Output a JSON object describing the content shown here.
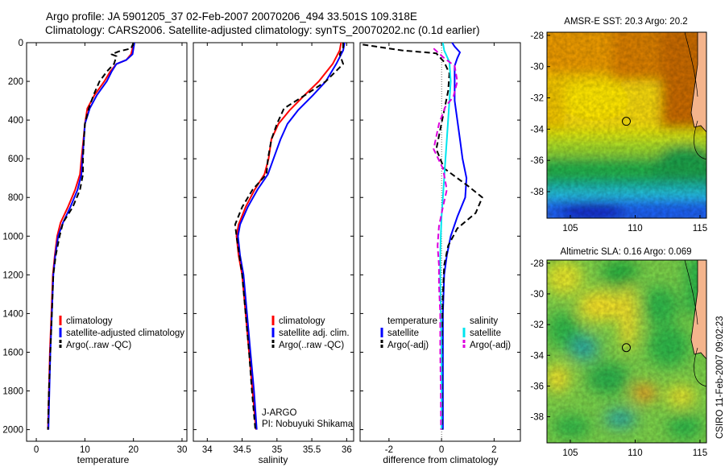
{
  "header": {
    "line1": "Argo profile: JA 5901205_37 02-Feb-2007 20070206_494 33.501S 109.318E",
    "line2": "Climatology: CARS2006. Satellite-adjusted climatology: synTS_20070202.nc (0.1d earlier)"
  },
  "side_credit": "CSIRO 11-Feb-2007 09:02:23",
  "chart_data": [
    {
      "id": "temperature",
      "type": "line",
      "xlabel": "temperature",
      "ylabel": "",
      "xlim": [
        -2,
        31
      ],
      "ylim": [
        2060,
        0
      ],
      "xticks": [
        "0",
        "10",
        "20",
        "30"
      ],
      "xtick_values": [
        0,
        10,
        20,
        30
      ],
      "yticks": [
        "0",
        "200",
        "400",
        "600",
        "800",
        "1000",
        "1200",
        "1400",
        "1600",
        "1800",
        "2000"
      ],
      "ytick_values": [
        0,
        200,
        400,
        600,
        800,
        1000,
        1200,
        1400,
        1600,
        1800,
        2000
      ],
      "legend": [
        "climatology",
        "satellite-adjusted climatology",
        "Argo(..raw -QC)"
      ],
      "series": [
        {
          "name": "climatology",
          "color": "#ff0000",
          "style": "solid",
          "points": [
            [
              20.1,
              0
            ],
            [
              19.8,
              30
            ],
            [
              19.5,
              60
            ],
            [
              18.5,
              90
            ],
            [
              16.5,
              110
            ],
            [
              15.2,
              150
            ],
            [
              14,
              200
            ],
            [
              12,
              270
            ],
            [
              10.5,
              340
            ],
            [
              10,
              420
            ],
            [
              9.7,
              500
            ],
            [
              9.3,
              600
            ],
            [
              9,
              680
            ],
            [
              8,
              760
            ],
            [
              6.5,
              850
            ],
            [
              5,
              930
            ],
            [
              4.3,
              1000
            ],
            [
              3.8,
              1100
            ],
            [
              3.4,
              1200
            ],
            [
              3.1,
              1400
            ],
            [
              2.8,
              1600
            ],
            [
              2.6,
              1800
            ],
            [
              2.4,
              2000
            ]
          ]
        },
        {
          "name": "satellite-adjusted climatology",
          "color": "#0000ff",
          "style": "solid",
          "points": [
            [
              20.2,
              0
            ],
            [
              20,
              30
            ],
            [
              19.8,
              60
            ],
            [
              18.5,
              90
            ],
            [
              16.5,
              110
            ],
            [
              15.5,
              150
            ],
            [
              14.5,
              200
            ],
            [
              12.5,
              270
            ],
            [
              11,
              340
            ],
            [
              10,
              420
            ],
            [
              9.8,
              500
            ],
            [
              9.5,
              600
            ],
            [
              9.3,
              680
            ],
            [
              8.5,
              760
            ],
            [
              7,
              850
            ],
            [
              5.5,
              930
            ],
            [
              4.5,
              1000
            ],
            [
              3.9,
              1100
            ],
            [
              3.5,
              1200
            ],
            [
              3.2,
              1400
            ],
            [
              2.9,
              1600
            ],
            [
              2.7,
              1800
            ],
            [
              2.5,
              2000
            ]
          ]
        },
        {
          "name": "Argo(..raw -QC)",
          "color": "#000000",
          "style": "dashed",
          "points": [
            [
              20,
              0
            ],
            [
              19.5,
              30
            ],
            [
              17,
              45
            ],
            [
              15.5,
              60
            ],
            [
              16.5,
              70
            ],
            [
              16,
              110
            ],
            [
              14.5,
              150
            ],
            [
              13,
              200
            ],
            [
              11.8,
              270
            ],
            [
              10.8,
              340
            ],
            [
              10,
              420
            ],
            [
              9.8,
              500
            ],
            [
              9.6,
              600
            ],
            [
              9.6,
              680
            ],
            [
              9,
              760
            ],
            [
              7.5,
              850
            ],
            [
              5.5,
              930
            ],
            [
              4.8,
              1000
            ],
            [
              4,
              1100
            ],
            [
              3.5,
              1200
            ],
            [
              3.2,
              1400
            ],
            [
              2.9,
              1600
            ],
            [
              2.6,
              1800
            ],
            [
              2.4,
              2000
            ]
          ]
        }
      ]
    },
    {
      "id": "salinity",
      "type": "line",
      "xlabel": "salinity",
      "ylabel": "",
      "xlim": [
        33.8,
        36.1
      ],
      "ylim": [
        2060,
        0
      ],
      "xticks": [
        "34",
        "34.5",
        "35",
        "35.5",
        "36"
      ],
      "xtick_values": [
        34,
        34.5,
        35,
        35.5,
        36
      ],
      "legend": [
        "climatology",
        "satellite adj. clim.",
        "Argo(..raw -QC)"
      ],
      "annotations": [
        "J-ARGO",
        "PI: Nobuyuki Shikama"
      ],
      "series": [
        {
          "name": "climatology",
          "color": "#ff0000",
          "style": "solid",
          "points": [
            [
              35.92,
              0
            ],
            [
              35.9,
              40
            ],
            [
              35.8,
              110
            ],
            [
              35.6,
              200
            ],
            [
              35.4,
              270
            ],
            [
              35.18,
              350
            ],
            [
              35.02,
              420
            ],
            [
              34.92,
              500
            ],
            [
              34.88,
              600
            ],
            [
              34.82,
              680
            ],
            [
              34.68,
              760
            ],
            [
              34.55,
              850
            ],
            [
              34.45,
              940
            ],
            [
              34.42,
              1000
            ],
            [
              34.45,
              1100
            ],
            [
              34.5,
              1200
            ],
            [
              34.55,
              1400
            ],
            [
              34.6,
              1600
            ],
            [
              34.65,
              1800
            ],
            [
              34.7,
              2000
            ]
          ]
        },
        {
          "name": "satellite adj. clim.",
          "color": "#0000ff",
          "style": "solid",
          "points": [
            [
              35.97,
              0
            ],
            [
              35.95,
              40
            ],
            [
              35.85,
              110
            ],
            [
              35.7,
              200
            ],
            [
              35.52,
              270
            ],
            [
              35.3,
              350
            ],
            [
              35.15,
              420
            ],
            [
              35.05,
              500
            ],
            [
              34.95,
              600
            ],
            [
              34.87,
              680
            ],
            [
              34.72,
              760
            ],
            [
              34.58,
              850
            ],
            [
              34.47,
              940
            ],
            [
              34.44,
              1000
            ],
            [
              34.47,
              1100
            ],
            [
              34.52,
              1200
            ],
            [
              34.57,
              1400
            ],
            [
              34.62,
              1600
            ],
            [
              34.67,
              1800
            ],
            [
              34.71,
              2000
            ]
          ]
        },
        {
          "name": "Argo(..raw -QC)",
          "color": "#000000",
          "style": "dashed",
          "points": [
            [
              35.95,
              0
            ],
            [
              35.95,
              25
            ],
            [
              35.9,
              60
            ],
            [
              35.95,
              110
            ],
            [
              35.7,
              200
            ],
            [
              35.45,
              260
            ],
            [
              35.1,
              340
            ],
            [
              35.0,
              420
            ],
            [
              34.92,
              500
            ],
            [
              34.87,
              600
            ],
            [
              34.85,
              680
            ],
            [
              34.65,
              760
            ],
            [
              34.5,
              850
            ],
            [
              34.4,
              940
            ],
            [
              34.42,
              1000
            ],
            [
              34.46,
              1100
            ],
            [
              34.5,
              1200
            ],
            [
              34.55,
              1400
            ],
            [
              34.6,
              1600
            ],
            [
              34.64,
              1800
            ],
            [
              34.69,
              2000
            ]
          ]
        }
      ]
    },
    {
      "id": "difference",
      "type": "line",
      "xlabel": "difference from climatology",
      "ylabel": "",
      "xlim": [
        -3.1,
        3
      ],
      "ylim": [
        2060,
        0
      ],
      "xticks": [
        "-2",
        "0",
        "2"
      ],
      "xtick_values": [
        -2,
        0,
        2
      ],
      "legend_groups": [
        {
          "title": "temperature",
          "items": [
            "satellite",
            "Argo(-adj)"
          ]
        },
        {
          "title": "salinity",
          "items": [
            "satellite",
            "Argo(-adj)"
          ]
        }
      ],
      "series": [
        {
          "name": "temperature satellite",
          "color": "#0000ff",
          "style": "solid",
          "points": [
            [
              0.4,
              0
            ],
            [
              0.5,
              20
            ],
            [
              0.7,
              50
            ],
            [
              0.6,
              80
            ],
            [
              0.5,
              120
            ],
            [
              0.5,
              200
            ],
            [
              0.5,
              300
            ],
            [
              0.6,
              400
            ],
            [
              0.7,
              500
            ],
            [
              0.8,
              600
            ],
            [
              0.95,
              700
            ],
            [
              0.9,
              800
            ],
            [
              0.6,
              900
            ],
            [
              0.35,
              1000
            ],
            [
              0.2,
              1100
            ],
            [
              0.1,
              1200
            ],
            [
              0.05,
              1400
            ],
            [
              0.05,
              1600
            ],
            [
              0.05,
              1800
            ],
            [
              0.05,
              2000
            ]
          ]
        },
        {
          "name": "temperature Argo(-adj)",
          "color": "#000000",
          "style": "dashed",
          "points": [
            [
              -3,
              10
            ],
            [
              -2.5,
              20
            ],
            [
              -1.5,
              40
            ],
            [
              -0.2,
              55
            ],
            [
              0.1,
              100
            ],
            [
              0.3,
              160
            ],
            [
              0.25,
              250
            ],
            [
              0.1,
              350
            ],
            [
              -0.05,
              450
            ],
            [
              -0.2,
              550
            ],
            [
              0.1,
              650
            ],
            [
              1.0,
              740
            ],
            [
              1.55,
              800
            ],
            [
              1.3,
              880
            ],
            [
              0.6,
              960
            ],
            [
              0.25,
              1050
            ],
            [
              0.1,
              1150
            ],
            [
              0.05,
              1300
            ],
            [
              0.02,
              1500
            ],
            [
              0.02,
              2000
            ]
          ]
        },
        {
          "name": "salinity satellite",
          "color": "#00e5ee",
          "style": "solid",
          "points": [
            [
              0.05,
              0
            ],
            [
              0.1,
              40
            ],
            [
              0.3,
              100
            ],
            [
              0.35,
              200
            ],
            [
              0.3,
              300
            ],
            [
              0.25,
              400
            ],
            [
              0.2,
              500
            ],
            [
              0.15,
              600
            ],
            [
              0.1,
              700
            ],
            [
              0.05,
              800
            ],
            [
              0.0,
              900
            ],
            [
              -0.03,
              1000
            ],
            [
              -0.05,
              1100
            ],
            [
              -0.05,
              1200
            ],
            [
              -0.03,
              1400
            ],
            [
              0.0,
              1600
            ],
            [
              0.0,
              1800
            ],
            [
              0.0,
              2000
            ]
          ]
        },
        {
          "name": "salinity Argo(-adj)",
          "color": "#dd00dd",
          "style": "dashed",
          "points": [
            [
              -0.3,
              30
            ],
            [
              0.1,
              80
            ],
            [
              0.5,
              120
            ],
            [
              0.6,
              200
            ],
            [
              0.45,
              280
            ],
            [
              0.15,
              330
            ],
            [
              -0.1,
              420
            ],
            [
              -0.3,
              550
            ],
            [
              0.05,
              650
            ],
            [
              0.2,
              760
            ],
            [
              0.05,
              850
            ],
            [
              -0.1,
              950
            ],
            [
              -0.15,
              1050
            ],
            [
              -0.1,
              1150
            ],
            [
              -0.1,
              1250
            ],
            [
              -0.05,
              1400
            ],
            [
              -0.05,
              1600
            ],
            [
              -0.03,
              1800
            ],
            [
              -0.02,
              2000
            ]
          ]
        }
      ]
    },
    {
      "id": "amsr-e-map",
      "type": "heatmap",
      "title": "AMSR-E SST: 20.3  Argo: 20.2",
      "xlim": [
        103.2,
        115.5
      ],
      "ylim": [
        -39.7,
        -27.8
      ],
      "xticks": [
        "105",
        "110",
        "115"
      ],
      "xtick_values": [
        105,
        110,
        115
      ],
      "yticks": [
        "-28",
        "-30",
        "-32",
        "-34",
        "-36",
        "-38"
      ],
      "ytick_values": [
        -28,
        -30,
        -32,
        -34,
        -36,
        -38
      ],
      "marker": {
        "lon": 109.318,
        "lat": -33.501
      }
    },
    {
      "id": "altimetric-map",
      "type": "heatmap",
      "title": "Altimetric SLA: 0.16  Argo: 0.069",
      "xlim": [
        103.2,
        115.5
      ],
      "ylim": [
        -39.7,
        -27.8
      ],
      "xticks": [
        "105",
        "110",
        "115"
      ],
      "xtick_values": [
        105,
        110,
        115
      ],
      "yticks": [
        "-28",
        "-30",
        "-32",
        "-34",
        "-36",
        "-38"
      ],
      "ytick_values": [
        -28,
        -30,
        -32,
        -34,
        -36,
        -38
      ],
      "marker": {
        "lon": 109.318,
        "lat": -33.501
      }
    }
  ]
}
